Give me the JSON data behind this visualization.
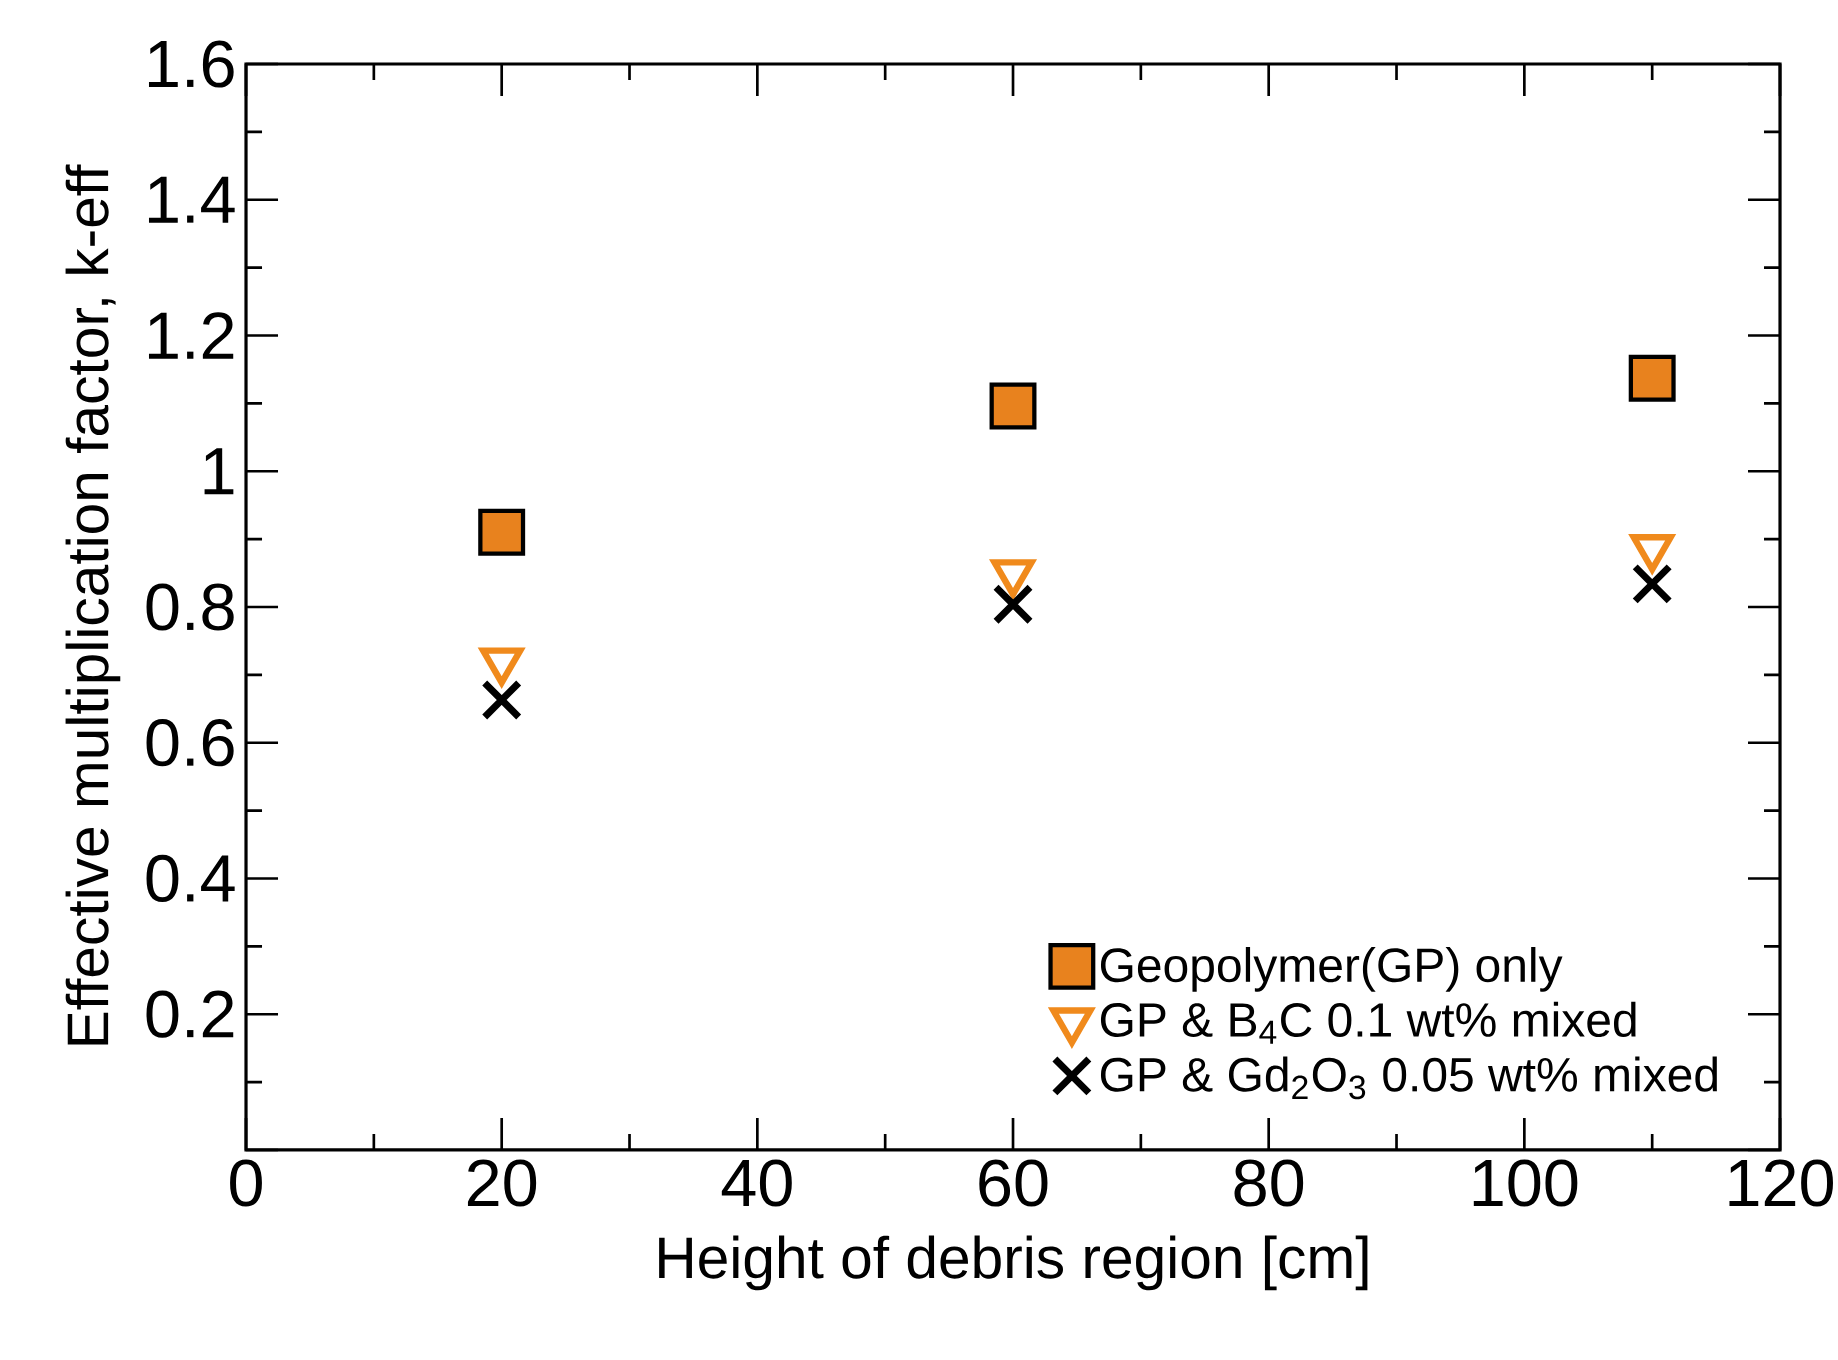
{
  "chart_data": {
    "type": "scatter",
    "xlabel": "Height of debris region [cm]",
    "ylabel": "Effective multiplication factor, k-eff",
    "x": [
      20,
      60,
      110
    ],
    "series": [
      {
        "name": "Geopolymer(GP) only",
        "color": "#e8821e",
        "marker": "square",
        "values": [
          0.91,
          1.096,
          1.137
        ]
      },
      {
        "name": "GP & B$_{4}$C 0.1 wt% mixed",
        "color": "#f08a1c",
        "marker": "triangle",
        "values": [
          0.72,
          0.85,
          0.887
        ]
      },
      {
        "name": "GP & Gd$_{2}$O$_{3}$ 0.05 wt% mixed",
        "color": "#000000",
        "marker": "cross",
        "values": [
          0.663,
          0.804,
          0.834
        ]
      }
    ],
    "xlim": [
      0,
      120
    ],
    "xticks": [
      0,
      20,
      40,
      60,
      80,
      100,
      120
    ],
    "ylim": [
      0,
      1.6
    ],
    "yticks": [
      {
        "value": 0,
        "label": null
      },
      0.2,
      0.4,
      0.6,
      0.8,
      1,
      1.2,
      1.4,
      1.6
    ],
    "grid": false,
    "legend": "bottom right"
  }
}
